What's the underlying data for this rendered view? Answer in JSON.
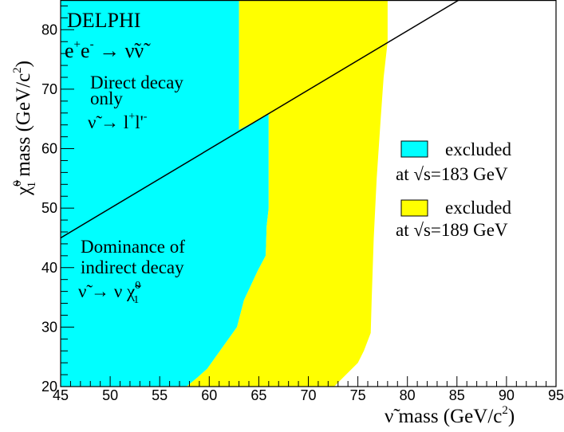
{
  "chart_data": {
    "type": "area",
    "xlabel_parts": [
      "ν̃ mass (GeV/c",
      "2",
      ")"
    ],
    "ylabel_parts": [
      "χ̃",
      "0",
      "1",
      " mass (GeV/c",
      "2",
      ")"
    ],
    "xlim": [
      45,
      95
    ],
    "ylim": [
      20,
      85
    ],
    "xticks": [
      45,
      50,
      55,
      60,
      65,
      70,
      75,
      80,
      85,
      90,
      95
    ],
    "yticks": [
      20,
      30,
      40,
      50,
      60,
      70,
      80
    ],
    "regions": [
      {
        "name": "excluded at √s=183 GeV",
        "color": "#00ffff",
        "boundary": [
          [
            45,
            20
          ],
          [
            45,
            85
          ],
          [
            63,
            85
          ],
          [
            63,
            63.2
          ],
          [
            66,
            65.8
          ],
          [
            66,
            50
          ],
          [
            65.8,
            47
          ],
          [
            65.7,
            42
          ],
          [
            64.9,
            39.5
          ],
          [
            63.5,
            34.5
          ],
          [
            62.8,
            30
          ],
          [
            61.3,
            26.5
          ],
          [
            59.8,
            23
          ],
          [
            58.8,
            21.5
          ],
          [
            57.7,
            20
          ]
        ]
      },
      {
        "name": "excluded at √s=189 GeV",
        "color": "#ffff00",
        "boundary": [
          [
            57.7,
            20
          ],
          [
            58.8,
            21.5
          ],
          [
            59.8,
            23
          ],
          [
            61.3,
            26.5
          ],
          [
            62.8,
            30
          ],
          [
            63.5,
            34.5
          ],
          [
            64.9,
            39.5
          ],
          [
            65.7,
            42
          ],
          [
            65.8,
            47
          ],
          [
            66,
            50
          ],
          [
            66,
            65.8
          ],
          [
            63,
            63.2
          ],
          [
            63,
            85
          ],
          [
            78,
            85
          ],
          [
            78,
            78
          ],
          [
            77.6,
            72
          ],
          [
            77.3,
            65
          ],
          [
            76.9,
            55
          ],
          [
            76.6,
            45
          ],
          [
            76.4,
            35
          ],
          [
            76.3,
            29
          ],
          [
            75.6,
            26
          ],
          [
            75,
            24
          ],
          [
            73.5,
            21.5
          ],
          [
            72.6,
            20
          ]
        ]
      }
    ],
    "line": {
      "x": [
        45,
        85.2
      ],
      "y": [
        45,
        85
      ]
    },
    "legend": [
      {
        "color": "#00ffff",
        "label": "excluded",
        "sub": "at √s=183 GeV"
      },
      {
        "color": "#ffff00",
        "label": "excluded",
        "sub": "at √s=189 GeV"
      }
    ],
    "annotations": {
      "experiment": "DELPHI",
      "process": [
        "e",
        "+",
        "e",
        "-",
        " → ν̃ν̃"
      ],
      "direct": [
        "Direct decay",
        "only",
        "ν̃ → l",
        "+",
        "l'",
        "-"
      ],
      "indirect": [
        "Dominance of",
        "indirect decay",
        "ν̃ → ν χ̃",
        "0",
        "1"
      ]
    }
  }
}
